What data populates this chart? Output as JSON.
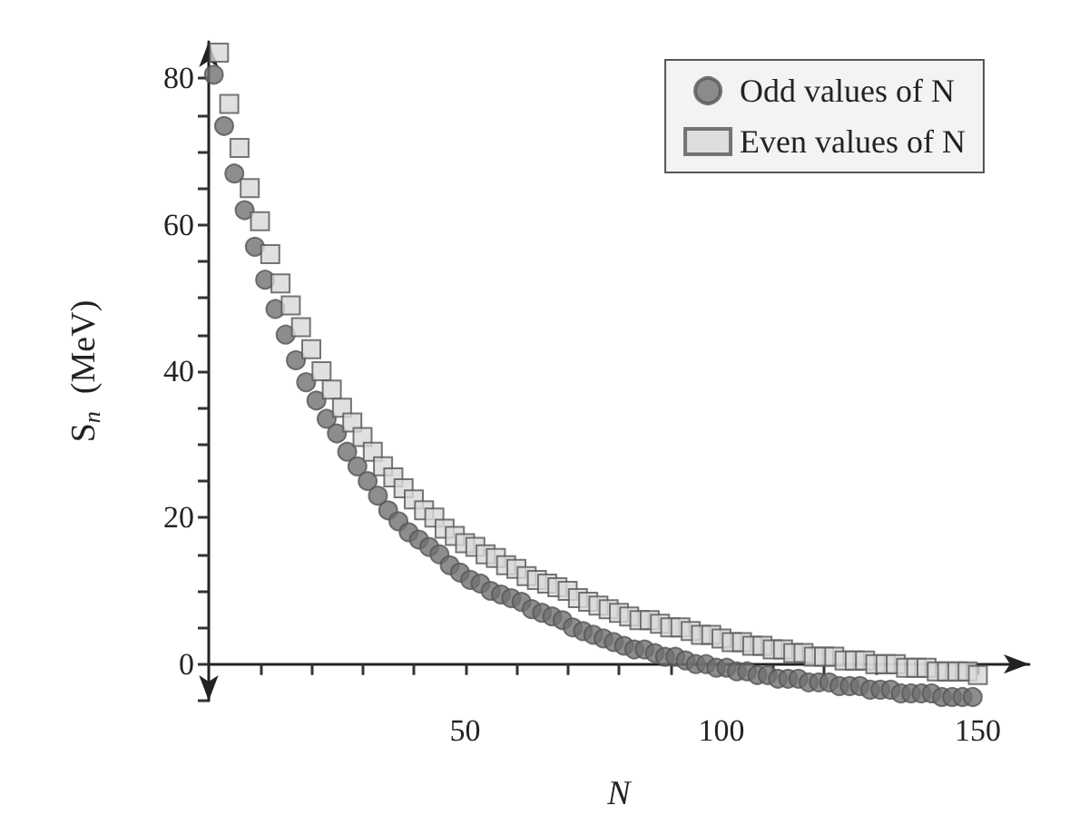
{
  "chart_data": {
    "type": "scatter",
    "xlabel": "N",
    "ylabel": "S$_{n}$  (MeV)",
    "xlim": [
      0,
      160
    ],
    "ylim": [
      -5,
      85
    ],
    "xticks": [
      {
        "value": 10,
        "label": null
      },
      {
        "value": 20,
        "label": null
      },
      {
        "value": 30,
        "label": null
      },
      {
        "value": 40,
        "label": null
      },
      50,
      {
        "value": 60,
        "label": null
      },
      {
        "value": 70,
        "label": null
      },
      {
        "value": 80,
        "label": null
      },
      {
        "value": 90,
        "label": null
      },
      100,
      {
        "value": 110,
        "label": null
      },
      {
        "value": 120,
        "label": null
      },
      {
        "value": 130,
        "label": null
      },
      {
        "value": 140,
        "label": null
      },
      150
    ],
    "yticks": [
      {
        "value": -5,
        "label": null
      },
      0,
      {
        "value": 5,
        "label": null
      },
      {
        "value": 10,
        "label": null
      },
      {
        "value": 15,
        "label": null
      },
      20,
      {
        "value": 25,
        "label": null
      },
      {
        "value": 30,
        "label": null
      },
      {
        "value": 35,
        "label": null
      },
      40,
      {
        "value": 45,
        "label": null
      },
      {
        "value": 50,
        "label": null
      },
      {
        "value": 55,
        "label": null
      },
      60,
      {
        "value": 65,
        "label": null
      },
      {
        "value": 70,
        "label": null
      },
      {
        "value": 75,
        "label": null
      },
      80
    ],
    "legend": "top right",
    "grid": false,
    "series": [
      {
        "name": "Odd values of N",
        "color": "#707070",
        "marker": "circle",
        "x": [
          1,
          3,
          5,
          7,
          9,
          11,
          13,
          15,
          17,
          19,
          21,
          23,
          25,
          27,
          29,
          31,
          33,
          35,
          37,
          39,
          41,
          43,
          45,
          47,
          49,
          51,
          53,
          55,
          57,
          59,
          61,
          63,
          65,
          67,
          69,
          71,
          73,
          75,
          77,
          79,
          81,
          83,
          85,
          87,
          89,
          91,
          93,
          95,
          97,
          99,
          101,
          103,
          105,
          107,
          109,
          111,
          113,
          115,
          117,
          119,
          121,
          123,
          125,
          127,
          129,
          131,
          133,
          135,
          137,
          139,
          141,
          143,
          145,
          147,
          149
        ],
        "values": [
          80.5,
          73.5,
          67,
          62,
          57,
          52.5,
          48.5,
          45,
          41.5,
          38.5,
          36,
          33.5,
          31.5,
          29,
          27,
          25,
          23,
          21,
          19.5,
          18,
          17,
          16,
          15,
          13.5,
          12.5,
          11.5,
          11,
          10,
          9.5,
          9,
          8.5,
          7.5,
          7,
          6.5,
          6,
          5,
          4.5,
          4,
          3.5,
          3,
          2.5,
          2,
          2,
          1.5,
          1,
          1,
          0.5,
          0,
          0,
          -0.5,
          -0.5,
          -1,
          -1,
          -1.5,
          -1.5,
          -2,
          -2,
          -2,
          -2.5,
          -2.5,
          -2.5,
          -3,
          -3,
          -3,
          -3.5,
          -3.5,
          -3.5,
          -4,
          -4,
          -4,
          -4,
          -4.5,
          -4.5,
          -4.5,
          -4.5
        ]
      },
      {
        "name": "Even values of N",
        "color": "#d8d8d8",
        "marker": "square",
        "x": [
          2,
          4,
          6,
          8,
          10,
          12,
          14,
          16,
          18,
          20,
          22,
          24,
          26,
          28,
          30,
          32,
          34,
          36,
          38,
          40,
          42,
          44,
          46,
          48,
          50,
          52,
          54,
          56,
          58,
          60,
          62,
          64,
          66,
          68,
          70,
          72,
          74,
          76,
          78,
          80,
          82,
          84,
          86,
          88,
          90,
          92,
          94,
          96,
          98,
          100,
          102,
          104,
          106,
          108,
          110,
          112,
          114,
          116,
          118,
          120,
          122,
          124,
          126,
          128,
          130,
          132,
          134,
          136,
          138,
          140,
          142,
          144,
          146,
          148,
          150
        ],
        "values": [
          83.5,
          76.5,
          70.5,
          65,
          60.5,
          56,
          52,
          49,
          46,
          43,
          40,
          37.5,
          35,
          33,
          31,
          29,
          27,
          25.5,
          24,
          22.5,
          21,
          20,
          18.5,
          17.5,
          16.5,
          16,
          15,
          14.5,
          13.5,
          13,
          12,
          11.5,
          11,
          10.5,
          10,
          9,
          8.5,
          8,
          7.5,
          7,
          6.5,
          6,
          6,
          5.5,
          5,
          5,
          4.5,
          4,
          4,
          3.5,
          3,
          3,
          2.5,
          2.5,
          2,
          2,
          1.5,
          1.5,
          1,
          1,
          1,
          0.5,
          0.5,
          0.5,
          0,
          0,
          0,
          -0.5,
          -0.5,
          -0.5,
          -1,
          -1,
          -1,
          -1,
          -1.5
        ]
      }
    ]
  }
}
